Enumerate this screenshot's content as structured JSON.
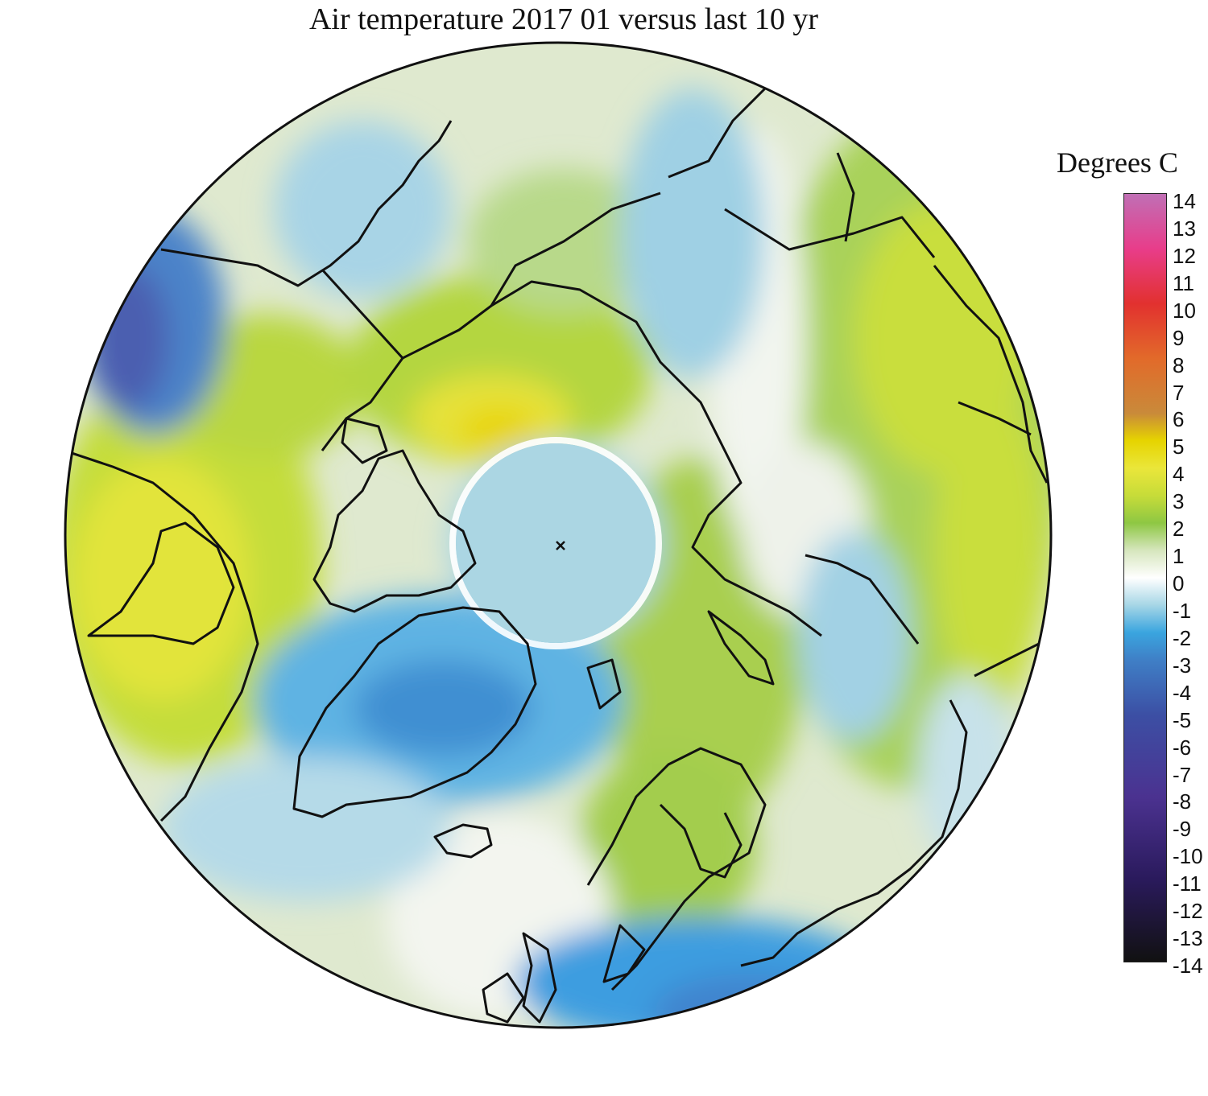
{
  "title": "Air temperature 2017 01 versus last 10 yr",
  "colorbar": {
    "label": "Degrees C",
    "min": -14,
    "max": 14,
    "ticks": [
      "14",
      "13",
      "12",
      "11",
      "10",
      "9",
      "8",
      "7",
      "6",
      "5",
      "4",
      "3",
      "2",
      "1",
      "0",
      "-1",
      "-2",
      "-3",
      "-4",
      "-5",
      "-6",
      "-7",
      "-8",
      "-9",
      "-10",
      "-11",
      "-12",
      "-13",
      "-14"
    ],
    "stops": [
      {
        "value": 14,
        "color": "#c06fb5"
      },
      {
        "value": 12,
        "color": "#e83d8a"
      },
      {
        "value": 10,
        "color": "#e2312f"
      },
      {
        "value": 8,
        "color": "#e26a2a"
      },
      {
        "value": 6,
        "color": "#c98a3a"
      },
      {
        "value": 5,
        "color": "#e6d400"
      },
      {
        "value": 4,
        "color": "#eae63a"
      },
      {
        "value": 3,
        "color": "#c7dc39"
      },
      {
        "value": 2,
        "color": "#8ec743"
      },
      {
        "value": 1,
        "color": "#d6e6bd"
      },
      {
        "value": 0,
        "color": "#ffffff"
      },
      {
        "value": -1,
        "color": "#a6d6e6"
      },
      {
        "value": -2,
        "color": "#3aa5df"
      },
      {
        "value": -3,
        "color": "#3f7fc6"
      },
      {
        "value": -5,
        "color": "#3c4fa4"
      },
      {
        "value": -8,
        "color": "#4b3290"
      },
      {
        "value": -11,
        "color": "#2a1a5c"
      },
      {
        "value": -14,
        "color": "#111111"
      }
    ]
  },
  "map": {
    "projection": "north-polar-stereographic",
    "pole_marker": "x-icon"
  }
}
